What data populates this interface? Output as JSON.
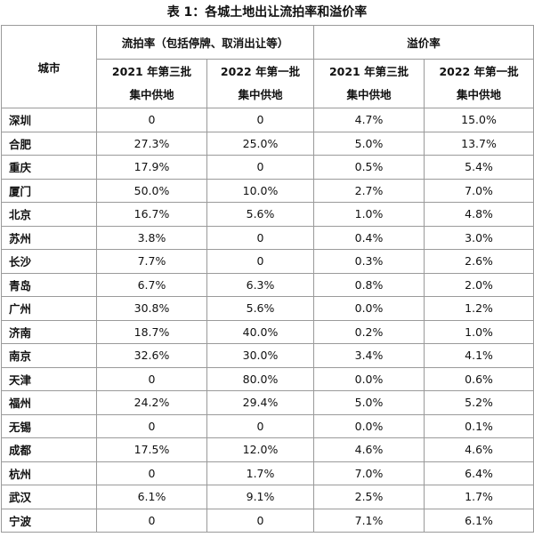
{
  "title": "表 1：各城土地出让流拍率和溢价率",
  "table": {
    "header": {
      "city": "城市",
      "group1": "流拍率（包括停牌、取消出让等）",
      "group2": "溢价率",
      "sub": [
        [
          "2021 年第三批",
          "集中供地"
        ],
        [
          "2022 年第一批",
          "集中供地"
        ],
        [
          "2021 年第三批",
          "集中供地"
        ],
        [
          "2022 年第一批",
          "集中供地"
        ]
      ]
    },
    "rows": [
      [
        "深圳",
        "0",
        "0",
        "4.7%",
        "15.0%"
      ],
      [
        "合肥",
        "27.3%",
        "25.0%",
        "5.0%",
        "13.7%"
      ],
      [
        "重庆",
        "17.9%",
        "0",
        "0.5%",
        "5.4%"
      ],
      [
        "厦门",
        "50.0%",
        "10.0%",
        "2.7%",
        "7.0%"
      ],
      [
        "北京",
        "16.7%",
        "5.6%",
        "1.0%",
        "4.8%"
      ],
      [
        "苏州",
        "3.8%",
        "0",
        "0.4%",
        "3.0%"
      ],
      [
        "长沙",
        "7.7%",
        "0",
        "0.3%",
        "2.6%"
      ],
      [
        "青岛",
        "6.7%",
        "6.3%",
        "0.8%",
        "2.0%"
      ],
      [
        "广州",
        "30.8%",
        "5.6%",
        "0.0%",
        "1.2%"
      ],
      [
        "济南",
        "18.7%",
        "40.0%",
        "0.2%",
        "1.0%"
      ],
      [
        "南京",
        "32.6%",
        "30.0%",
        "3.4%",
        "4.1%"
      ],
      [
        "天津",
        "0",
        "80.0%",
        "0.0%",
        "0.6%"
      ],
      [
        "福州",
        "24.2%",
        "29.4%",
        "5.0%",
        "5.2%"
      ],
      [
        "无锡",
        "0",
        "0",
        "0.0%",
        "0.1%"
      ],
      [
        "成都",
        "17.5%",
        "12.0%",
        "4.6%",
        "4.6%"
      ],
      [
        "杭州",
        "0",
        "1.7%",
        "7.0%",
        "6.4%"
      ],
      [
        "武汉",
        "6.1%",
        "9.1%",
        "2.5%",
        "1.7%"
      ],
      [
        "宁波",
        "0",
        "0",
        "7.1%",
        "6.1%"
      ]
    ]
  }
}
